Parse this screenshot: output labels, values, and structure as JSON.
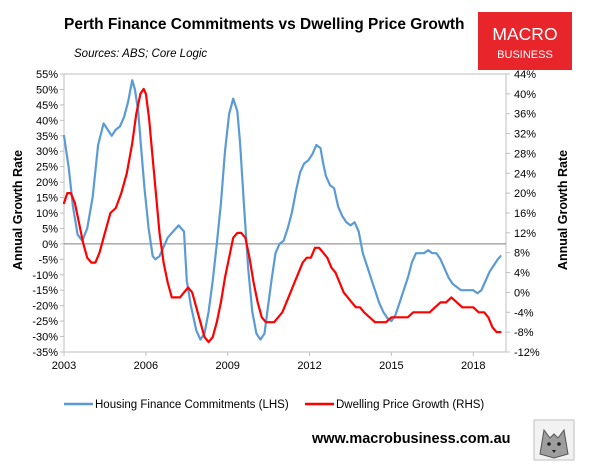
{
  "header": {
    "title": "Perth Finance Commitments vs Dwelling Price Growth",
    "subtitle": "Sources: ABS; Core Logic"
  },
  "logo": {
    "line1": "MACRO",
    "line2": "BUSINESS",
    "color": "#e8252b"
  },
  "footer": {
    "url": "www.macrobusiness.com.au",
    "mascot_icon": "wolf-icon"
  },
  "chart_data": {
    "type": "line",
    "title": "Perth Finance Commitments vs Dwelling Price Growth",
    "subtitle": "Sources: ABS; Core Logic",
    "xlim": [
      2003.0,
      2019.2
    ],
    "xticks": [
      2003,
      2006,
      2009,
      2012,
      2015,
      2018
    ],
    "xtick_labels": [
      "2003",
      "2006",
      "2009",
      "2012",
      "2015",
      "2018"
    ],
    "ylabel_left": "Annual Growth Rate",
    "ylabel_right": "Annual Growth Rate",
    "ylim_left": [
      -35,
      55
    ],
    "ylim_right": [
      -12,
      44
    ],
    "yticks_left": [
      "55%",
      "50%",
      "45%",
      "40%",
      "35%",
      "30%",
      "25%",
      "20%",
      "15%",
      "10%",
      "5%",
      "0%",
      "-5%",
      "-10%",
      "-15%",
      "-20%",
      "-25%",
      "-30%",
      "-35%"
    ],
    "yticks_right": [
      "44%",
      "40%",
      "36%",
      "32%",
      "28%",
      "24%",
      "20%",
      "16%",
      "12%",
      "8%",
      "4%",
      "0%",
      "-4%",
      "-8%",
      "-12%"
    ],
    "grid": false,
    "zero_line": true,
    "legend_position": "bottom",
    "series": [
      {
        "name": "Housing Finance Commitments (LHS)",
        "axis": "left",
        "color": "#5b9bd5",
        "x": [
          2003.0,
          2003.17,
          2003.33,
          2003.5,
          2003.67,
          2003.85,
          2004.05,
          2004.25,
          2004.45,
          2004.6,
          2004.75,
          2004.9,
          2005.05,
          2005.2,
          2005.35,
          2005.5,
          2005.6,
          2005.72,
          2005.82,
          2005.95,
          2006.1,
          2006.25,
          2006.35,
          2006.5,
          2006.65,
          2006.8,
          2007.0,
          2007.2,
          2007.4,
          2007.5,
          2007.65,
          2007.85,
          2008.0,
          2008.15,
          2008.3,
          2008.45,
          2008.6,
          2008.75,
          2008.9,
          2009.05,
          2009.2,
          2009.35,
          2009.45,
          2009.6,
          2009.75,
          2009.9,
          2010.05,
          2010.2,
          2010.35,
          2010.45,
          2010.6,
          2010.75,
          2010.9,
          2011.05,
          2011.2,
          2011.35,
          2011.5,
          2011.65,
          2011.8,
          2011.95,
          2012.1,
          2012.25,
          2012.4,
          2012.5,
          2012.6,
          2012.75,
          2012.9,
          2013.05,
          2013.2,
          2013.35,
          2013.5,
          2013.65,
          2013.8,
          2013.95,
          2014.1,
          2014.25,
          2014.4,
          2014.55,
          2014.7,
          2014.85,
          2015.0,
          2015.15,
          2015.3,
          2015.45,
          2015.6,
          2015.75,
          2015.9,
          2016.05,
          2016.2,
          2016.35,
          2016.5,
          2016.65,
          2016.8,
          2016.95,
          2017.1,
          2017.25,
          2017.4,
          2017.55,
          2017.7,
          2017.85,
          2018.0,
          2018.15,
          2018.3,
          2018.45,
          2018.6,
          2018.75,
          2018.9,
          2019.0
        ],
        "y": [
          35,
          25,
          12,
          3,
          1,
          5,
          15,
          32,
          39,
          37,
          35,
          37,
          38,
          41,
          46,
          53,
          50,
          43,
          32,
          18,
          5,
          -4,
          -5,
          -4,
          -1,
          2,
          4,
          6,
          4,
          -12,
          -20,
          -28,
          -31,
          -29,
          -22,
          -12,
          0,
          13,
          30,
          42,
          47,
          43,
          33,
          12,
          -8,
          -22,
          -29,
          -31,
          -29,
          -22,
          -12,
          -3,
          0,
          1,
          5,
          10,
          17,
          23,
          26,
          27,
          29,
          32,
          31,
          26,
          22,
          19,
          18,
          12,
          9,
          7,
          6,
          7,
          4,
          -3,
          -7,
          -11,
          -15,
          -19,
          -22,
          -24,
          -25,
          -23,
          -19,
          -15,
          -11,
          -6,
          -3,
          -3,
          -3,
          -2,
          -3,
          -3,
          -5,
          -8,
          -11,
          -13,
          -14,
          -15,
          -15,
          -15,
          -15,
          -16,
          -15,
          -12,
          -9,
          -7,
          -5,
          -4
        ]
      },
      {
        "name": "Dwelling Price Growth (RHS)",
        "axis": "right",
        "color": "#ff0000",
        "x": [
          2003.0,
          2003.12,
          2003.25,
          2003.4,
          2003.55,
          2003.7,
          2003.85,
          2004.0,
          2004.15,
          2004.3,
          2004.5,
          2004.7,
          2004.9,
          2005.1,
          2005.3,
          2005.5,
          2005.65,
          2005.8,
          2005.92,
          2006.0,
          2006.12,
          2006.25,
          2006.4,
          2006.5,
          2006.65,
          2006.8,
          2006.95,
          2007.1,
          2007.25,
          2007.4,
          2007.55,
          2007.7,
          2007.85,
          2008.0,
          2008.15,
          2008.3,
          2008.45,
          2008.6,
          2008.75,
          2008.9,
          2009.05,
          2009.2,
          2009.35,
          2009.5,
          2009.65,
          2009.8,
          2009.95,
          2010.1,
          2010.25,
          2010.4,
          2010.55,
          2010.7,
          2010.85,
          2011.0,
          2011.15,
          2011.3,
          2011.45,
          2011.6,
          2011.75,
          2011.9,
          2012.05,
          2012.2,
          2012.35,
          2012.5,
          2012.65,
          2012.8,
          2012.95,
          2013.1,
          2013.25,
          2013.4,
          2013.55,
          2013.7,
          2013.85,
          2014.0,
          2014.2,
          2014.4,
          2014.6,
          2014.8,
          2015.0,
          2015.2,
          2015.4,
          2015.6,
          2015.8,
          2016.0,
          2016.2,
          2016.4,
          2016.6,
          2016.8,
          2017.0,
          2017.2,
          2017.4,
          2017.6,
          2017.8,
          2018.0,
          2018.2,
          2018.4,
          2018.55,
          2018.7,
          2018.85,
          2019.0
        ],
        "y": [
          18,
          20,
          20,
          18,
          14,
          10,
          7,
          6,
          6,
          8,
          12,
          16,
          17,
          20,
          24,
          30,
          36,
          40,
          41,
          40,
          35,
          27,
          18,
          12,
          6,
          2,
          -1,
          -1,
          -1,
          0,
          1,
          0,
          -3,
          -6,
          -9,
          -10,
          -9,
          -6,
          -2,
          3,
          7,
          11,
          12,
          12,
          11,
          7,
          2,
          -2,
          -5,
          -6,
          -6,
          -6,
          -5,
          -4,
          -2,
          0,
          2,
          4,
          6,
          7,
          7,
          9,
          9,
          8,
          7,
          5,
          4,
          2,
          0,
          -1,
          -2,
          -3,
          -3,
          -4,
          -5,
          -6,
          -6,
          -6,
          -5,
          -5,
          -5,
          -5,
          -4,
          -4,
          -4,
          -4,
          -3,
          -2,
          -2,
          -1,
          -2,
          -3,
          -3,
          -3,
          -4,
          -4,
          -5,
          -7,
          -8,
          -8
        ]
      }
    ]
  }
}
